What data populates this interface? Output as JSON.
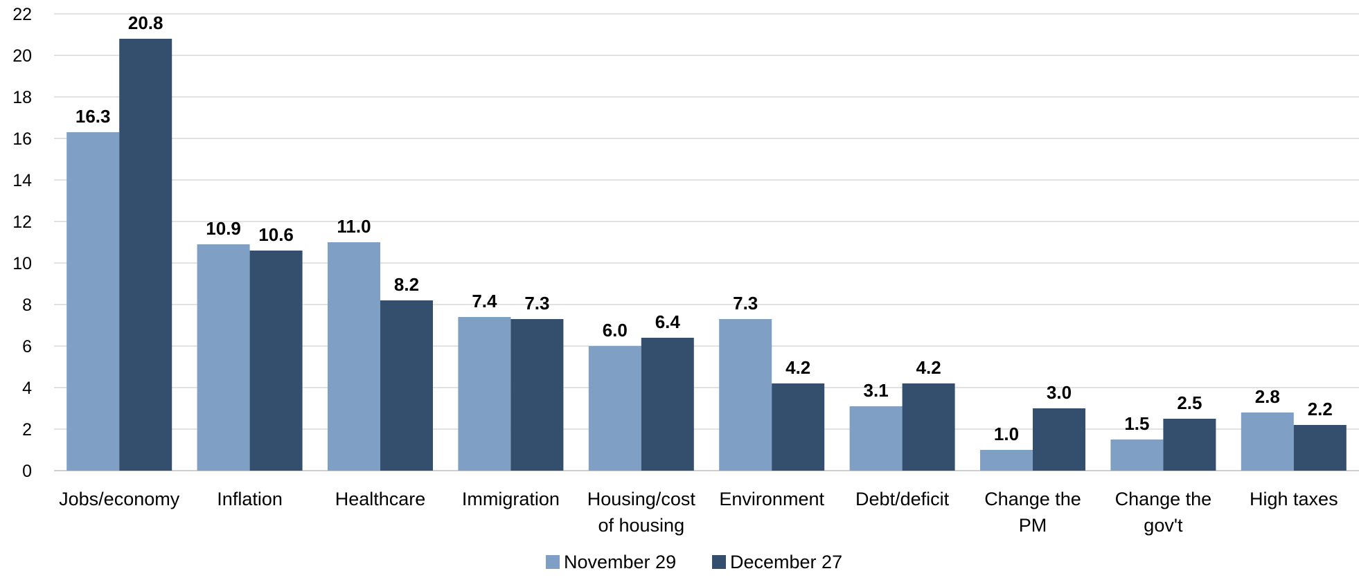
{
  "chart_data": {
    "type": "bar",
    "title": "",
    "xlabel": "",
    "ylabel": "",
    "ylim": [
      0,
      22
    ],
    "yticks": [
      0,
      2,
      4,
      6,
      8,
      10,
      12,
      14,
      16,
      18,
      20,
      22
    ],
    "grid": true,
    "legend_position": "bottom",
    "categories": [
      [
        "Jobs/economy"
      ],
      [
        "Inflation"
      ],
      [
        "Healthcare"
      ],
      [
        "Immigration"
      ],
      [
        "Housing/cost",
        "of housing"
      ],
      [
        "Environment"
      ],
      [
        "Debt/deficit"
      ],
      [
        "Change the",
        "PM"
      ],
      [
        "Change the",
        "gov't"
      ],
      [
        "High taxes"
      ]
    ],
    "series": [
      {
        "name": "November 29",
        "color": "#7f9fc4",
        "values": [
          16.3,
          10.9,
          11.0,
          7.4,
          6.0,
          7.3,
          3.1,
          1.0,
          1.5,
          2.8
        ],
        "labels": [
          "16.3",
          "10.9",
          "11.0",
          "7.4",
          "6.0",
          "7.3",
          "3.1",
          "1.0",
          "1.5",
          "2.8"
        ]
      },
      {
        "name": "December 27",
        "color": "#344f6e",
        "values": [
          20.8,
          10.6,
          8.2,
          7.3,
          6.4,
          4.2,
          4.2,
          3.0,
          2.5,
          2.2
        ],
        "labels": [
          "20.8",
          "10.6",
          "8.2",
          "7.3",
          "6.4",
          "4.2",
          "4.2",
          "3.0",
          "2.5",
          "2.2"
        ]
      }
    ]
  }
}
